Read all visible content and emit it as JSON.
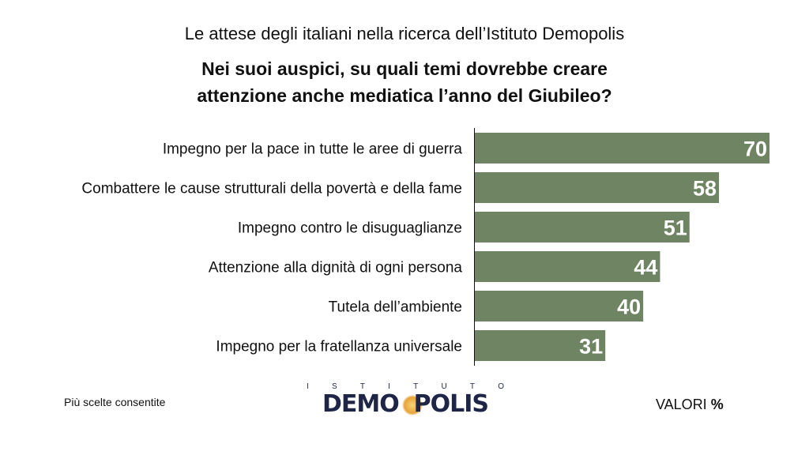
{
  "header": {
    "supertitle": "Le attese degli italiani nella ricerca dell’Istituto Demopolis"
  },
  "chart_data": {
    "type": "bar",
    "orientation": "horizontal",
    "title": "Nei suoi auspici, su quali temi dovrebbe creare attenzione anche mediatica l’anno del Giubileo?",
    "categories": [
      "Impegno per la pace in tutte le aree di guerra",
      "Combattere le cause strutturali della povertà e della fame",
      "Impegno contro le disuguaglianze",
      "Attenzione alla dignità di ogni persona",
      "Tutela dell’ambiente",
      "Impegno per la fratellanza universale"
    ],
    "values": [
      70,
      58,
      51,
      44,
      40,
      31
    ],
    "xlim": [
      0,
      70
    ],
    "grid": false,
    "bar_color": "#6e8462",
    "value_label_color": "#ffffff",
    "data_labels": true
  },
  "footer": {
    "note": "Più scelte consentite",
    "units_prefix": "VALORI",
    "units_symbol": "%",
    "logo_top": [
      "I",
      "S",
      "T",
      "I",
      "T",
      "U",
      "T",
      "O"
    ],
    "logo_before": "DEMO",
    "logo_after": "POLIS"
  },
  "colors": {
    "bar": "#6e8462",
    "logo": "#1f2547",
    "logo_accent": "#e8a33a"
  }
}
